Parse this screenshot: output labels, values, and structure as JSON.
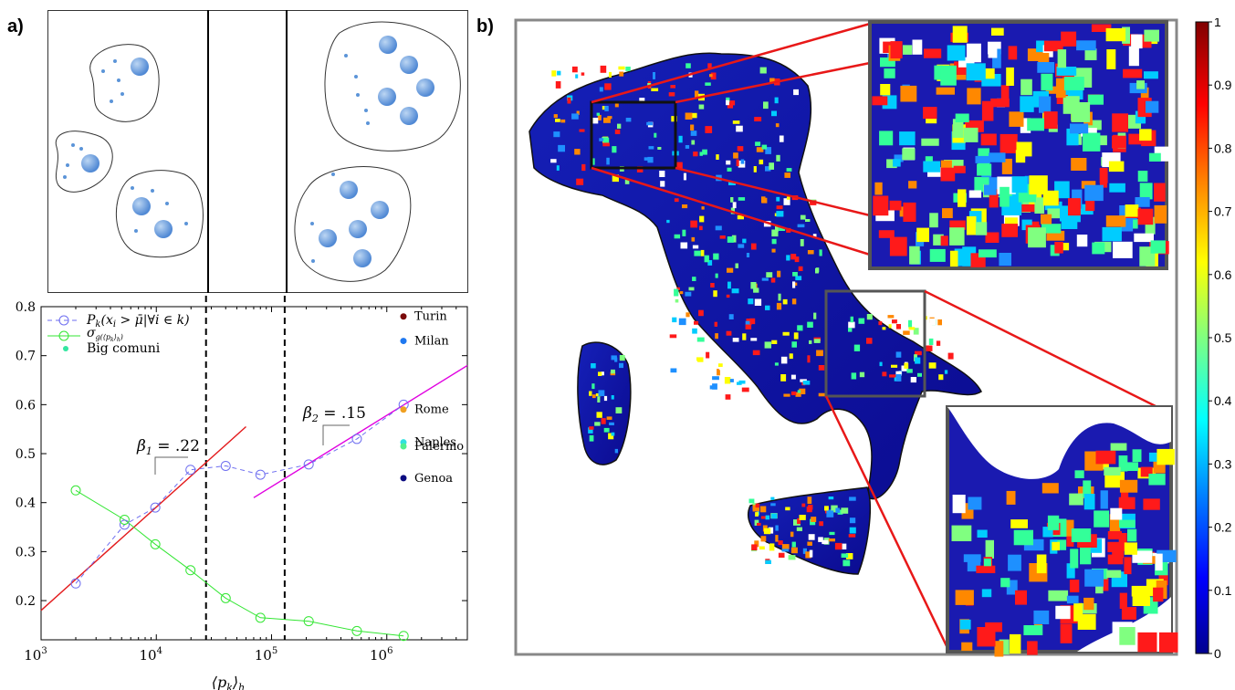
{
  "labels": {
    "panel_a": "a)",
    "panel_b": "b)"
  },
  "chart_data": [
    {
      "type": "line",
      "xscale": "log",
      "xlim": [
        1000,
        5000000
      ],
      "ylim": [
        0.12,
        0.8
      ],
      "xlabel": "⟨p",
      "xlabel_sub": "k",
      "xlabel_tail": "⟩",
      "xlabel_sub2": "h",
      "xticks": [
        1000,
        10000,
        100000,
        1000000
      ],
      "xtick_labels": [
        "10",
        "10",
        "10",
        "10"
      ],
      "xtick_exps": [
        "3",
        "4",
        "5",
        "6"
      ],
      "yticks": [
        0.2,
        0.3,
        0.4,
        0.5,
        0.6,
        0.7,
        0.8
      ],
      "ytick_labels": [
        "0.2",
        "0.3",
        "0.4",
        "0.5",
        "0.6",
        "0.7",
        "0.8"
      ],
      "vlines": [
        27000,
        130000
      ],
      "series": [
        {
          "name": "P",
          "name_sub": "k",
          "name_tail": "(x",
          "name_sub2": "i",
          "name_tail2": " > μ̄|∀i ∈ k)",
          "color": "#6e6ef0",
          "x": [
            2000,
            5300,
            9800,
            19800,
            40000,
            80000,
            210000,
            550000,
            1400000
          ],
          "y": [
            0.235,
            0.355,
            0.39,
            0.467,
            0.475,
            0.457,
            0.478,
            0.53,
            0.6
          ]
        },
        {
          "name": "σ",
          "name_sub": "g(⟨p",
          "name_sub_k": "k",
          "name_sub_tail": "⟩",
          "name_sub_h": "h",
          "name_sub_end": ")",
          "color": "#33e633",
          "x": [
            2000,
            5300,
            9800,
            19800,
            40000,
            80000,
            210000,
            550000,
            1400000
          ],
          "y": [
            0.425,
            0.365,
            0.315,
            0.262,
            0.205,
            0.165,
            0.158,
            0.138,
            0.128
          ]
        }
      ],
      "fits": [
        {
          "label": "β",
          "label_sub": "1",
          "label_value": " = .22",
          "color": "#e31a1c",
          "x": [
            1000,
            60000
          ],
          "y": [
            0.18,
            0.555
          ]
        },
        {
          "label": "β",
          "label_sub": "2",
          "label_value": " = .15",
          "color": "#e000e0",
          "x": [
            70000,
            5000000
          ],
          "y": [
            0.41,
            0.68
          ]
        }
      ],
      "big_comuni_label": "Big comuni",
      "big_comuni_color": "#33e6a0",
      "cities": [
        {
          "name": "Turin",
          "color": "#7a0a0a",
          "x": 1400000,
          "y": 0.78
        },
        {
          "name": "Milan",
          "color": "#1e78f0",
          "x": 1400000,
          "y": 0.73
        },
        {
          "name": "Rome",
          "color": "#f0a020",
          "x": 1400000,
          "y": 0.59
        },
        {
          "name": "Naples",
          "color": "#30e0e0",
          "x": 1400000,
          "y": 0.523
        },
        {
          "name": "Palermo",
          "color": "#50f090",
          "x": 1400000,
          "y": 0.515
        },
        {
          "name": "Genoa",
          "color": "#0b0b80",
          "x": 1400000,
          "y": 0.45
        }
      ]
    },
    {
      "type": "heatmap",
      "colorbar_ticks": [
        "1",
        "0.9",
        "0.8",
        "0.7",
        "0.6",
        "0.5",
        "0.4",
        "0.3",
        "0.2",
        "0.1",
        "0"
      ],
      "colormap": [
        "#00008f",
        "#0000ff",
        "#0080ff",
        "#00ffff",
        "#80ff80",
        "#ffff00",
        "#ff8000",
        "#ff0000",
        "#800000"
      ]
    }
  ]
}
